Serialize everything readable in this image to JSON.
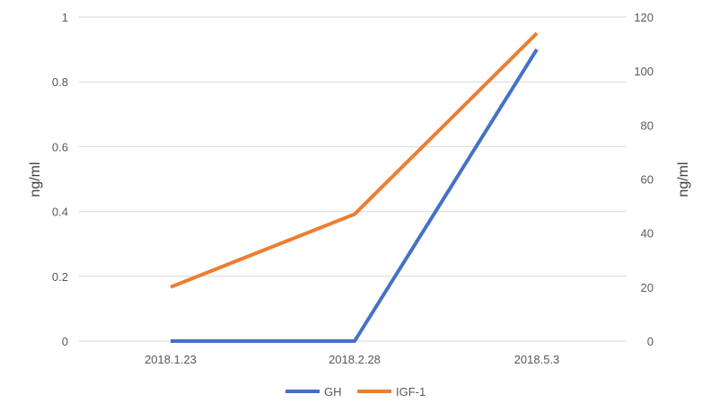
{
  "chart_data": {
    "type": "line",
    "categories": [
      "2018.1.23",
      "2018.2.28",
      "2018.5.3"
    ],
    "series": [
      {
        "name": "GH",
        "axis": "left",
        "values": [
          0,
          0,
          0.9
        ],
        "color": "#4472c4"
      },
      {
        "name": "IGF-1",
        "axis": "right",
        "values": [
          20,
          47,
          114
        ],
        "color": "#ed7d31"
      }
    ],
    "y_left": {
      "label": "ng/ml",
      "lim": [
        0,
        1
      ],
      "ticks": [
        "0",
        "0.2",
        "0.4",
        "0.6",
        "0.8",
        "1"
      ]
    },
    "y_right": {
      "label": "ng/ml",
      "lim": [
        0,
        120
      ],
      "ticks": [
        "0",
        "20",
        "40",
        "60",
        "80",
        "100",
        "120"
      ]
    },
    "grid": true,
    "legend": "bottom"
  }
}
